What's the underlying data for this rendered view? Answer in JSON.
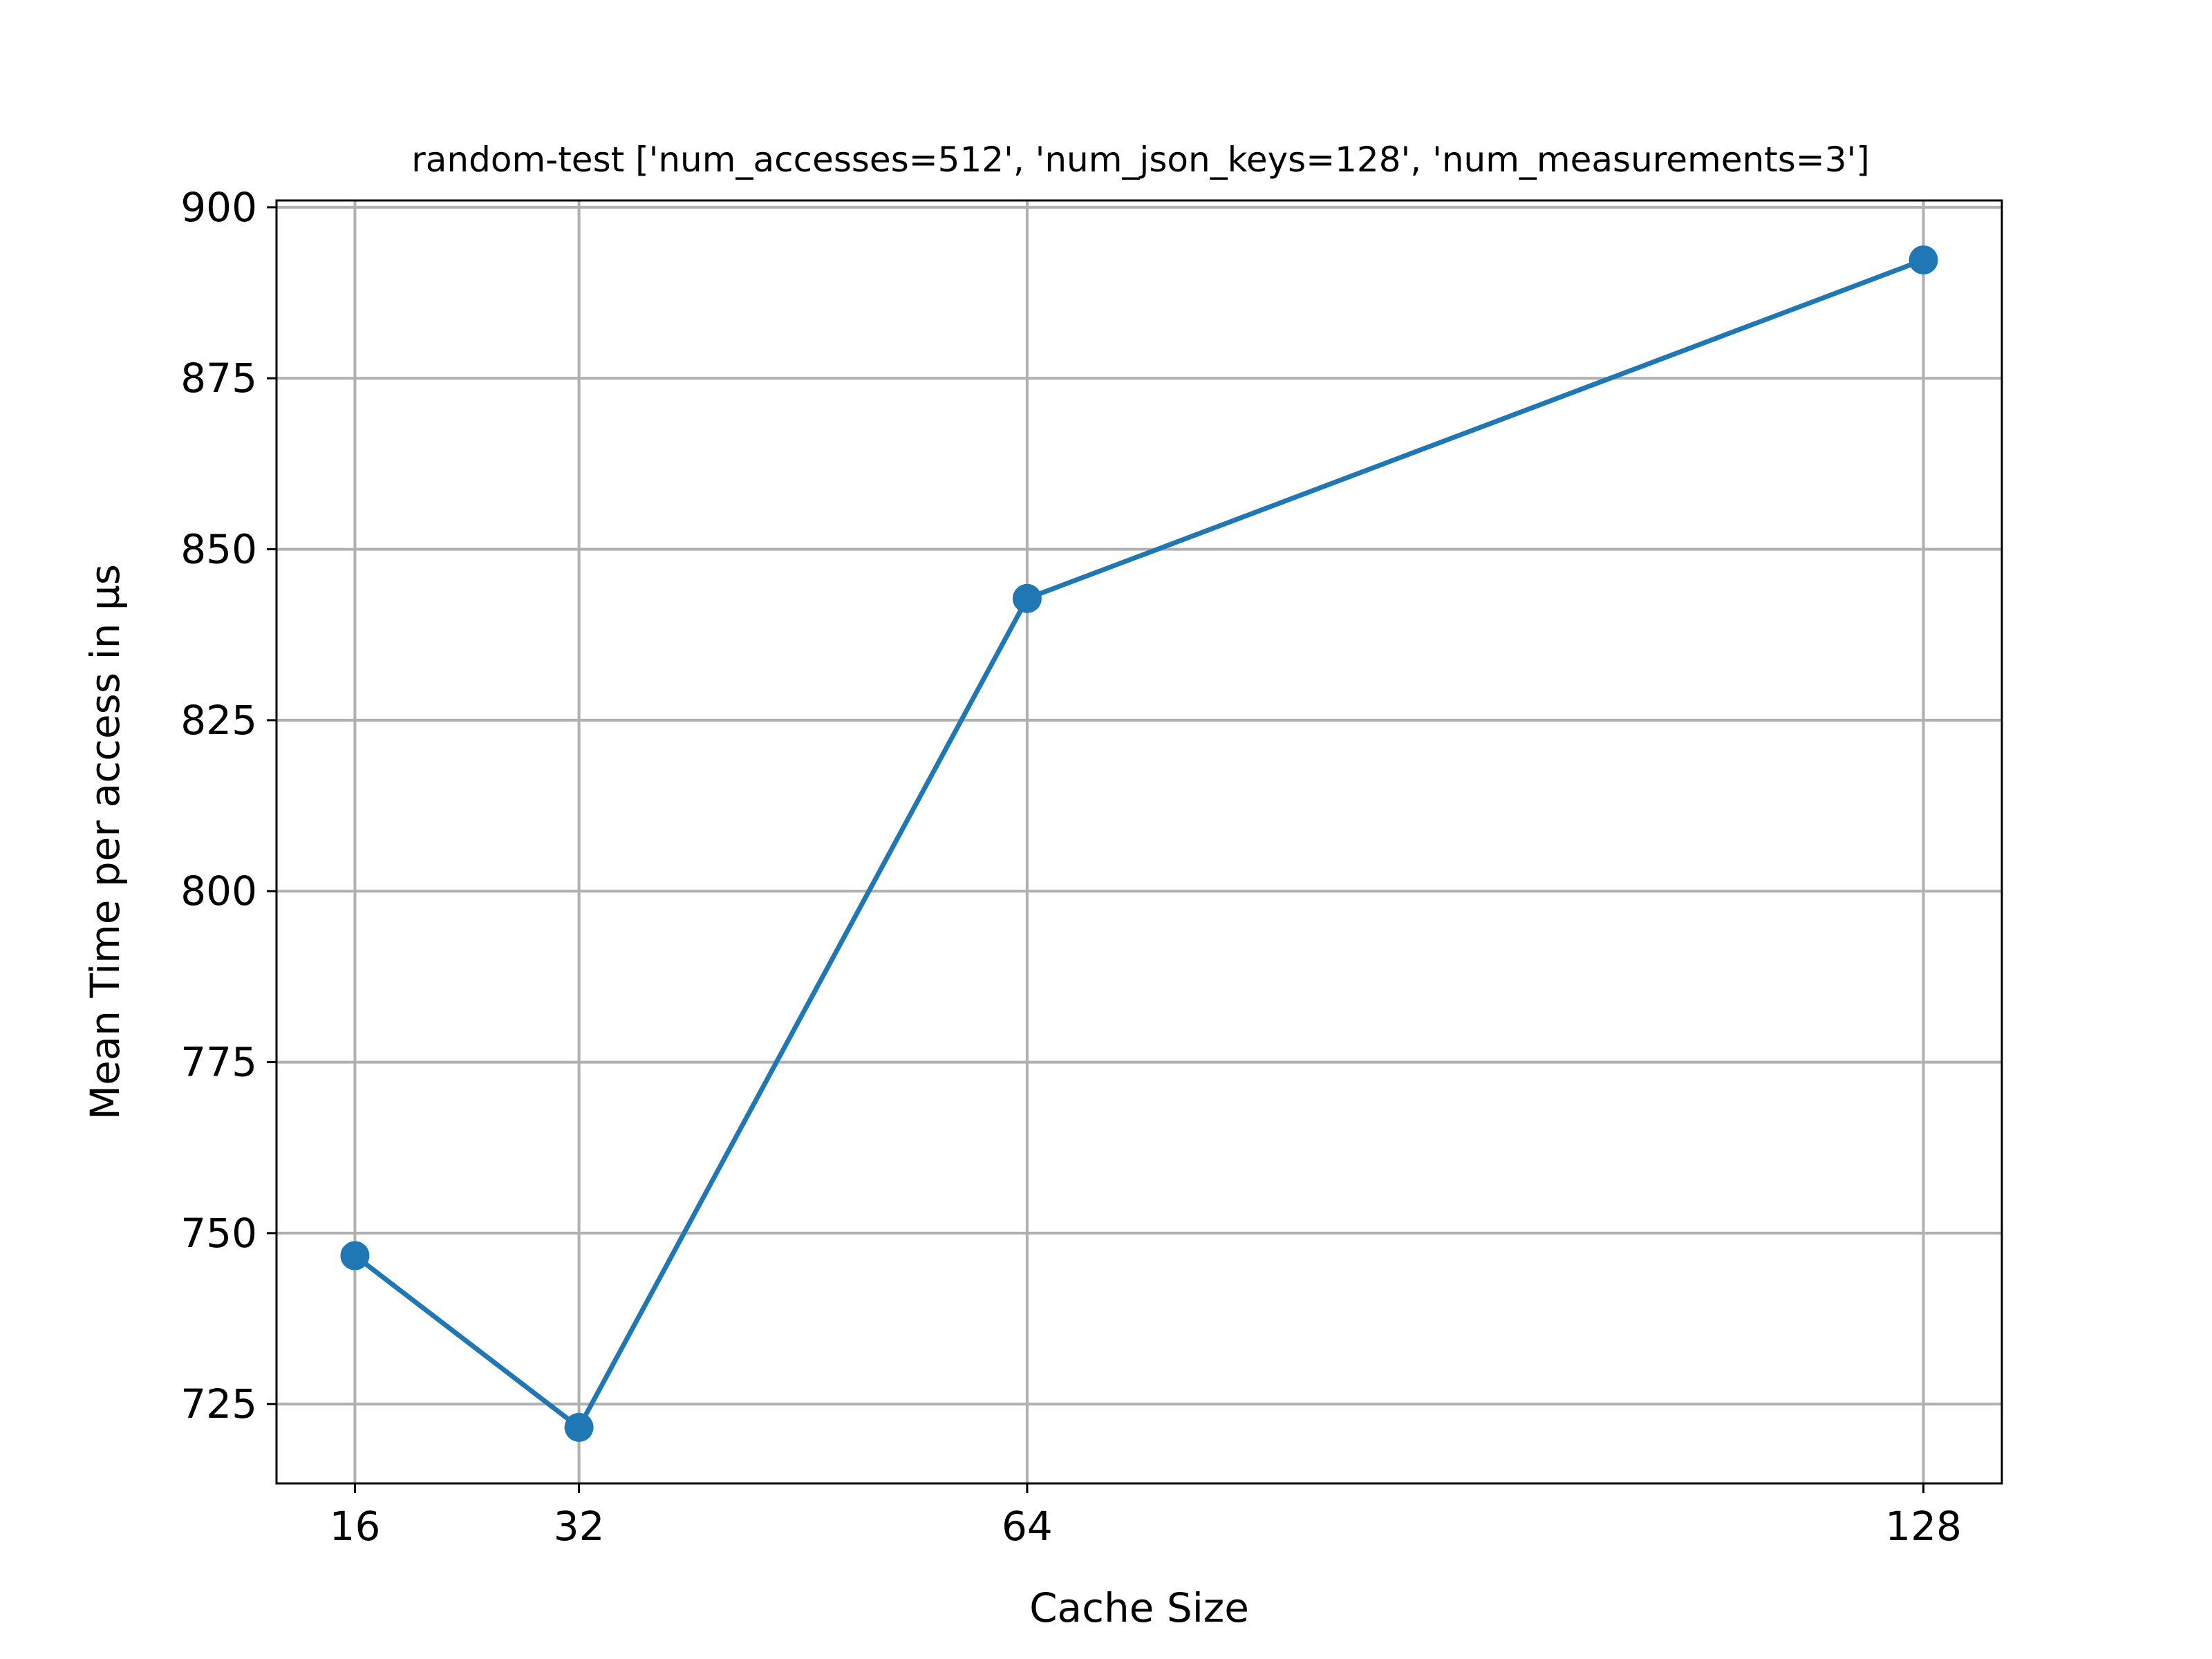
{
  "chart_data": {
    "type": "line",
    "title": "random-test ['num_accesses=512', 'num_json_keys=128', 'num_measurements=3']",
    "xlabel": "Cache Size",
    "ylabel": "Mean Time per access in µs",
    "x": [
      16,
      32,
      64,
      128
    ],
    "x_tick_labels": [
      "16",
      "32",
      "64",
      "128"
    ],
    "y_ticks": [
      725,
      750,
      775,
      800,
      825,
      850,
      875,
      900
    ],
    "y_tick_labels": [
      "725",
      "750",
      "775",
      "800",
      "825",
      "850",
      "875",
      "900"
    ],
    "xlim": [
      10.4,
      133.6
    ],
    "ylim": [
      713.4,
      901.0
    ],
    "grid": true,
    "series": [
      {
        "values": [
          746.7,
          721.6,
          842.8,
          892.3
        ],
        "color": "#1f77b4",
        "marker": "circle"
      }
    ]
  }
}
